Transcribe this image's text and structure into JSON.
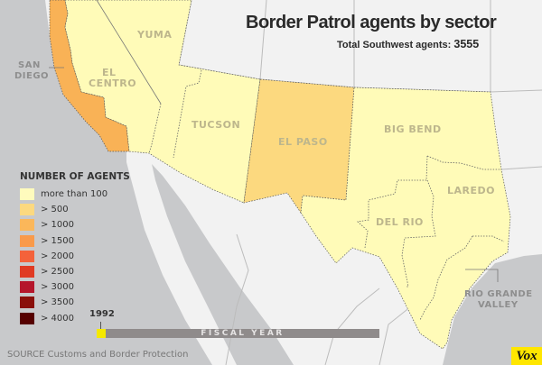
{
  "title": "Border Patrol agents by sector",
  "subtitle": {
    "label": "Total Southwest agents:",
    "value": "3555"
  },
  "sectors": [
    {
      "name": "YUMA",
      "bin": "more than 100"
    },
    {
      "name_line1": "EL",
      "name_line2": "CENTRO",
      "bin": "more than 100"
    },
    {
      "name_line1": "SAN",
      "name_line2": "DIEGO",
      "bin": "> 1000"
    },
    {
      "name": "TUCSON",
      "bin": "more than 100"
    },
    {
      "name": "EL PASO",
      "bin": "> 500"
    },
    {
      "name": "BIG BEND",
      "bin": "more than 100"
    },
    {
      "name": "DEL RIO",
      "bin": "more than 100"
    },
    {
      "name": "LAREDO",
      "bin": "more than 100"
    },
    {
      "name_line1": "RIO GRANDE",
      "name_line2": "VALLEY",
      "bin": "more than 100"
    }
  ],
  "legend": {
    "title": "NUMBER OF AGENTS",
    "items": [
      {
        "label": "more than 100",
        "color": "#fffbbd"
      },
      {
        "label": "> 500",
        "color": "#fcd97f"
      },
      {
        "label": "> 1000",
        "color": "#fbb75a"
      },
      {
        "label": "> 1500",
        "color": "#f99a4a"
      },
      {
        "label": "> 2000",
        "color": "#f4623a"
      },
      {
        "label": "> 2500",
        "color": "#e03a22"
      },
      {
        "label": "> 3000",
        "color": "#b5162b"
      },
      {
        "label": "> 3500",
        "color": "#8a0f0a"
      },
      {
        "label": "> 4000",
        "color": "#560000"
      }
    ]
  },
  "timeline": {
    "year": "1992",
    "label": "FISCAL YEAR",
    "handle_color": "#f5e900"
  },
  "source": "SOURCE  Customs and Border Protection",
  "logo": "Vox",
  "colors": {
    "ocean": "#c8c9cb",
    "land": "#f2f2f2"
  }
}
